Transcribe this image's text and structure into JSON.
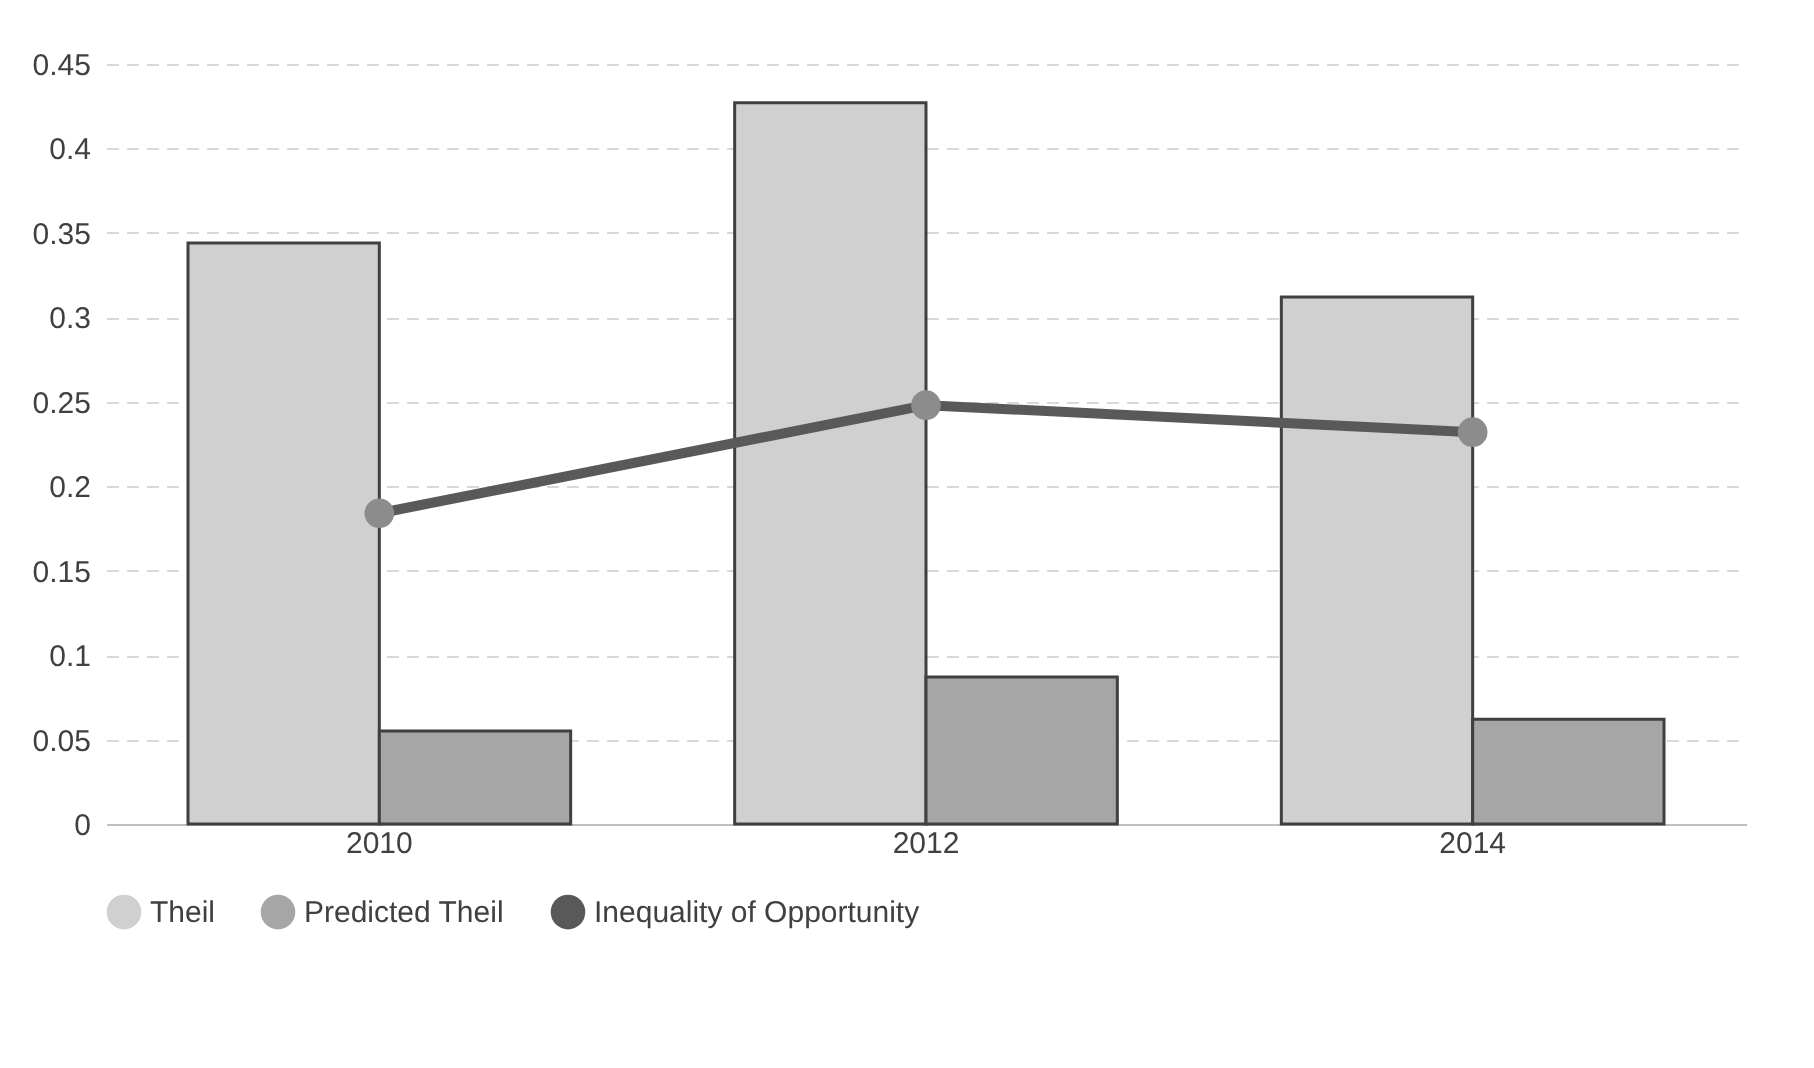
{
  "chart_data": {
    "type": "bar",
    "categories": [
      "2010",
      "2012",
      "2014"
    ],
    "series": [
      {
        "name": "Theil",
        "color": "#d0d0d0",
        "values": [
          0.344,
          0.427,
          0.312
        ]
      },
      {
        "name": "Predicted Theil",
        "color": "#a6a6a6",
        "values": [
          0.055,
          0.087,
          0.062
        ]
      },
      {
        "name": "Inequality of Opportunity",
        "type": "line",
        "color": "#595959",
        "values": [
          0.184,
          0.248,
          0.232
        ]
      }
    ],
    "ylim": [
      0,
      0.45
    ],
    "yticks": [
      0,
      0.05,
      0.1,
      0.15,
      0.2,
      0.25,
      0.3,
      0.35,
      0.4,
      0.45
    ],
    "grid": "y",
    "legend": "bottom",
    "marker": "circle",
    "line_style": "solid"
  }
}
